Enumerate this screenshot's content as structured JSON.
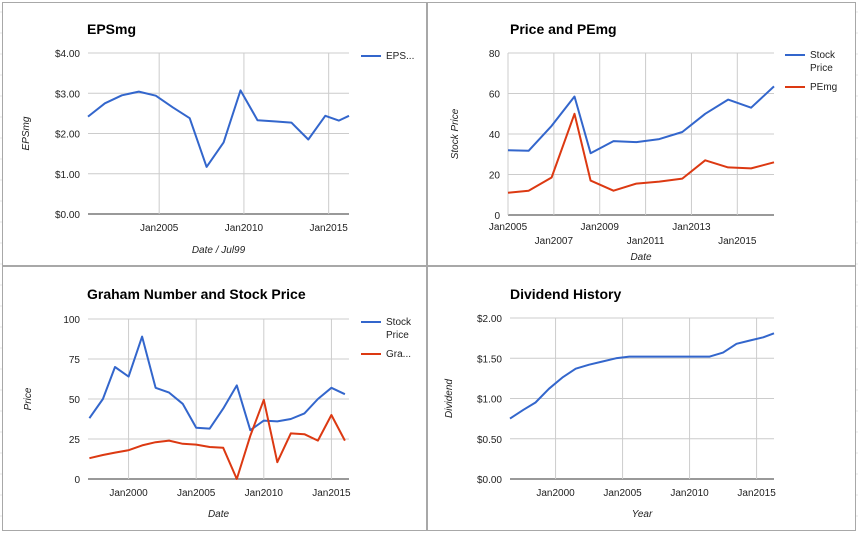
{
  "colors": {
    "blue": "#3366cc",
    "red": "#dc3912",
    "grid": "#cccccc",
    "axis": "#333333"
  },
  "chart_data": [
    {
      "type": "line",
      "title": "EPSmg",
      "xlabel": "Date / Jul99",
      "ylabel": "EPSmg",
      "ylim": [
        0,
        4
      ],
      "yticks": [
        0,
        1,
        2,
        3,
        4
      ],
      "yticklabels": [
        "$0.00",
        "$1.00",
        "$2.00",
        "$3.00",
        "$4.00"
      ],
      "xlim": [
        2000.8,
        2016.2
      ],
      "xticks": [
        {
          "x": 2005,
          "label": "Jan2005",
          "row": 0
        },
        {
          "x": 2010,
          "label": "Jan2010",
          "row": 0
        },
        {
          "x": 2015,
          "label": "Jan2015",
          "row": 0
        }
      ],
      "legend": "right",
      "series": [
        {
          "name": "EPS...",
          "color": "#3366cc",
          "x": [
            2000.8,
            2001.8,
            2002.8,
            2003.8,
            2004.8,
            2005.8,
            2006.8,
            2007.8,
            2008.8,
            2009.8,
            2010.8,
            2011.8,
            2012.8,
            2013.8,
            2014.8,
            2015.6,
            2016.2
          ],
          "y": [
            2.42,
            2.75,
            2.95,
            3.04,
            2.94,
            2.65,
            2.38,
            1.17,
            1.78,
            3.07,
            2.33,
            2.3,
            2.27,
            1.85,
            2.44,
            2.32,
            2.44
          ]
        }
      ]
    },
    {
      "type": "line",
      "title": "Price and PEmg",
      "xlabel": "Date",
      "ylabel": "Stock Price",
      "ylim": [
        0,
        80
      ],
      "yticks": [
        0,
        20,
        40,
        60,
        80
      ],
      "yticklabels": [
        "0",
        "20",
        "40",
        "60",
        "80"
      ],
      "xlim": [
        2005,
        2016.6
      ],
      "xticks": [
        {
          "x": 2005,
          "label": "Jan2005",
          "row": 0
        },
        {
          "x": 2007,
          "label": "Jan2007",
          "row": 1
        },
        {
          "x": 2009,
          "label": "Jan2009",
          "row": 0
        },
        {
          "x": 2011,
          "label": "Jan2011",
          "row": 1
        },
        {
          "x": 2013,
          "label": "Jan2013",
          "row": 0
        },
        {
          "x": 2015,
          "label": "Jan2015",
          "row": 1
        }
      ],
      "legend": "right",
      "series": [
        {
          "name": "Stock Price",
          "color": "#3366cc",
          "x": [
            2005,
            2005.9,
            2006.9,
            2007.9,
            2008.6,
            2009.6,
            2010.6,
            2011.6,
            2012.6,
            2013.6,
            2014.6,
            2015.6,
            2016.6
          ],
          "y": [
            32.0,
            31.7,
            44.0,
            58.5,
            30.5,
            36.5,
            36.0,
            37.5,
            41.0,
            50.0,
            57.0,
            53.0,
            63.5
          ]
        },
        {
          "name": "PEmg",
          "color": "#dc3912",
          "x": [
            2005,
            2005.9,
            2006.9,
            2007.9,
            2008.6,
            2009.6,
            2010.6,
            2011.6,
            2012.6,
            2013.6,
            2014.6,
            2015.6,
            2016.6
          ],
          "y": [
            11.0,
            12.0,
            18.5,
            50.0,
            17.0,
            12.0,
            15.5,
            16.5,
            18.0,
            27.0,
            23.5,
            23.0,
            26.0
          ]
        }
      ]
    },
    {
      "type": "line",
      "title": "Graham Number and Stock Price",
      "xlabel": "Date",
      "ylabel": "Price",
      "ylim": [
        0,
        100
      ],
      "yticks": [
        0,
        25,
        50,
        75,
        100
      ],
      "yticklabels": [
        "0",
        "25",
        "50",
        "75",
        "100"
      ],
      "xlim": [
        1997.0,
        2016.3
      ],
      "xticks": [
        {
          "x": 2000,
          "label": "Jan2000",
          "row": 0
        },
        {
          "x": 2005,
          "label": "Jan2005",
          "row": 0
        },
        {
          "x": 2010,
          "label": "Jan2010",
          "row": 0
        },
        {
          "x": 2015,
          "label": "Jan2015",
          "row": 0
        }
      ],
      "legend": "right",
      "series": [
        {
          "name": "Stock Price",
          "color": "#3366cc",
          "x": [
            1997.1,
            1998.1,
            1999.0,
            2000.0,
            2001.0,
            2002.0,
            2003.0,
            2004.0,
            2005.0,
            2006.0,
            2007.0,
            2008.0,
            2009.0,
            2010.0,
            2011.0,
            2012.0,
            2013.0,
            2014.0,
            2015.0,
            2016.0
          ],
          "y": [
            38,
            50,
            70,
            64,
            89,
            57,
            54,
            47,
            32,
            31.5,
            44,
            58.5,
            30.5,
            36.5,
            36,
            37.5,
            41,
            50,
            57,
            53
          ]
        },
        {
          "name": "Gra...",
          "color": "#dc3912",
          "x": [
            1997.1,
            1998.1,
            1999.0,
            2000.0,
            2001.0,
            2002.0,
            2003.0,
            2004.0,
            2005.0,
            2006.0,
            2007.0,
            2008.0,
            2009.0,
            2010.0,
            2011.0,
            2012.0,
            2013.0,
            2014.0,
            2015.0,
            2016.0
          ],
          "y": [
            13,
            15,
            16.5,
            18,
            21,
            23,
            24,
            22,
            21.5,
            20,
            19.5,
            0,
            27,
            49.5,
            10.5,
            28.5,
            28,
            24,
            40,
            24
          ]
        }
      ]
    },
    {
      "type": "line",
      "title": "Dividend History",
      "xlabel": "Year",
      "ylabel": "Dividend",
      "ylim": [
        0,
        2
      ],
      "yticks": [
        0,
        0.5,
        1,
        1.5,
        2
      ],
      "yticklabels": [
        "$0.00",
        "$0.50",
        "$1.00",
        "$1.50",
        "$2.00"
      ],
      "xlim": [
        1996.6,
        2016.3
      ],
      "xticks": [
        {
          "x": 2000,
          "label": "Jan2000",
          "row": 0
        },
        {
          "x": 2005,
          "label": "Jan2005",
          "row": 0
        },
        {
          "x": 2010,
          "label": "Jan2010",
          "row": 0
        },
        {
          "x": 2015,
          "label": "Jan2015",
          "row": 0
        }
      ],
      "legend": "none",
      "series": [
        {
          "name": "",
          "color": "#3366cc",
          "x": [
            1996.6,
            1997.6,
            1998.5,
            1999.5,
            2000.5,
            2001.5,
            2002.5,
            2003.5,
            2004.5,
            2005.5,
            2006.5,
            2007.5,
            2008.5,
            2009.5,
            2010.5,
            2011.5,
            2012.5,
            2013.5,
            2014.5,
            2015.5,
            2016.3
          ],
          "y": [
            0.75,
            0.86,
            0.95,
            1.12,
            1.26,
            1.37,
            1.42,
            1.46,
            1.5,
            1.52,
            1.52,
            1.52,
            1.52,
            1.52,
            1.52,
            1.52,
            1.57,
            1.68,
            1.72,
            1.76,
            1.81
          ]
        }
      ]
    }
  ]
}
